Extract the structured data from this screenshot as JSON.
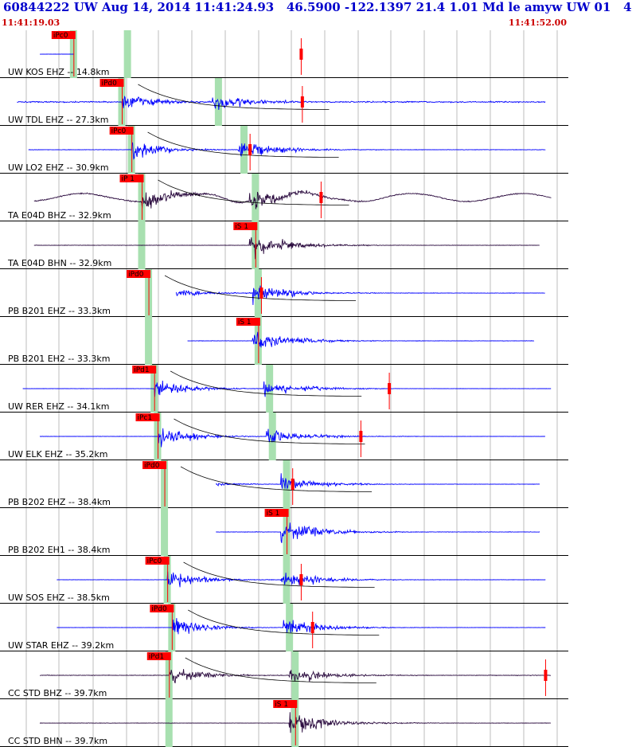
{
  "header": {
    "title": "60844222 UW Aug 14, 2014 11:41:24.93   46.5900 -122.1397 21.4 1.01 Md le amyw UW 01   4",
    "start_time": "11:41:19.03",
    "end_time": "11:41:52.00"
  },
  "colors": {
    "trace_blue": "#0000ff",
    "trace_dark": "#2a0a3e",
    "pick_red": "#ff0000",
    "window_green": "#a8e0b0",
    "grid_gray": "#909090",
    "decay_curve": "#000000"
  },
  "chart_data": {
    "type": "seismogram",
    "time_range": [
      "11:41:19.03",
      "11:41:52.00"
    ],
    "traces": [
      {
        "label": "UW KOS EHZ -- 14.8km",
        "pick": "iPc0",
        "color": "blue",
        "p": 0.13,
        "s": 0.225,
        "amp": 0.9,
        "style": "spike",
        "coda_mark": 0.53,
        "noise": 0.05,
        "window": [
          0.07,
          0.13
        ]
      },
      {
        "label": "UW TDL EHZ -- 27.3km",
        "pick": "iPd0",
        "color": "blue",
        "p": 0.215,
        "s": 0.385,
        "amp": 0.8,
        "style": "noisy",
        "coda_mark": 0.532,
        "noise": 0.25,
        "window": [
          0.03,
          0.96
        ]
      },
      {
        "label": "UW LO2 EHZ -- 30.9km",
        "pick": "iPc0",
        "color": "blue",
        "p": 0.232,
        "s": 0.43,
        "amp": 0.9,
        "style": "normal",
        "coda_mark": 0.44,
        "noise": 0.1,
        "window": [
          0.05,
          0.96
        ]
      },
      {
        "label": "TA E04D BHZ -- 32.9km",
        "pick": "iP 1",
        "color": "dark",
        "p": 0.25,
        "s": 0.45,
        "amp": 0.9,
        "style": "wavy",
        "coda_mark": 0.565,
        "noise": 0.15,
        "window": [
          0.06,
          0.97
        ]
      },
      {
        "label": "TA E04D BHN -- 32.9km",
        "pick": "iS 1",
        "color": "dark",
        "p": 0.25,
        "s": 0.45,
        "amp": 0.9,
        "style": "s_only",
        "coda_mark": null,
        "noise": 0.08,
        "window": [
          0.06,
          0.95
        ]
      },
      {
        "label": "PB B201 EHZ -- 33.3km",
        "pick": "iPd0",
        "color": "blue",
        "p": 0.262,
        "s": 0.455,
        "amp": 0.85,
        "style": "normal",
        "coda_mark": 0.46,
        "noise": 0.08,
        "window": [
          0.31,
          0.96
        ]
      },
      {
        "label": "PB B201 EH2 -- 33.3km",
        "pick": "iS 1",
        "color": "blue",
        "p": 0.262,
        "s": 0.455,
        "amp": 0.8,
        "style": "s_only",
        "coda_mark": null,
        "noise": 0.08,
        "window": [
          0.33,
          0.94
        ]
      },
      {
        "label": "UW RER EHZ -- 34.1km",
        "pick": "iPd1",
        "color": "blue",
        "p": 0.272,
        "s": 0.475,
        "amp": 0.85,
        "style": "normal",
        "coda_mark": 0.685,
        "noise": 0.06,
        "window": [
          0.04,
          0.97
        ]
      },
      {
        "label": "UW ELK EHZ -- 35.2km",
        "pick": "iPc1",
        "color": "blue",
        "p": 0.278,
        "s": 0.48,
        "amp": 0.85,
        "style": "normal",
        "coda_mark": 0.635,
        "noise": 0.06,
        "window": [
          0.07,
          0.96
        ]
      },
      {
        "label": "PB B202 EHZ -- 38.4km",
        "pick": "iPd0",
        "color": "blue",
        "p": 0.29,
        "s": 0.505,
        "amp": 0.85,
        "style": "normal",
        "coda_mark": 0.515,
        "noise": 0.07,
        "window": [
          0.38,
          0.95
        ]
      },
      {
        "label": "PB B202 EH1 -- 38.4km",
        "pick": "iS 1",
        "color": "blue",
        "p": 0.29,
        "s": 0.505,
        "amp": 0.85,
        "style": "s_only",
        "coda_mark": null,
        "noise": 0.1,
        "window": [
          0.38,
          0.95
        ]
      },
      {
        "label": "UW SOS EHZ -- 38.5km",
        "pick": "iPc0",
        "color": "blue",
        "p": 0.295,
        "s": 0.505,
        "amp": 0.85,
        "style": "normal",
        "coda_mark": 0.53,
        "noise": 0.07,
        "window": [
          0.1,
          0.96
        ]
      },
      {
        "label": "UW STAR EHZ -- 39.2km",
        "pick": "iPd0",
        "color": "blue",
        "p": 0.303,
        "s": 0.51,
        "amp": 0.85,
        "style": "normal",
        "coda_mark": 0.55,
        "noise": 0.06,
        "window": [
          0.1,
          0.96
        ]
      },
      {
        "label": "CC STD BHZ -- 39.7km",
        "pick": "iPd1",
        "color": "dark",
        "p": 0.298,
        "s": 0.52,
        "amp": 0.8,
        "style": "normal",
        "coda_mark": 0.96,
        "noise": 0.12,
        "window": [
          0.07,
          0.97
        ]
      },
      {
        "label": "CC STD BHN -- 39.7km",
        "pick": "iS 1",
        "color": "dark",
        "p": 0.298,
        "s": 0.52,
        "amp": 0.85,
        "style": "s_only",
        "coda_mark": null,
        "noise": 0.08,
        "window": [
          0.07,
          0.97
        ]
      }
    ]
  }
}
